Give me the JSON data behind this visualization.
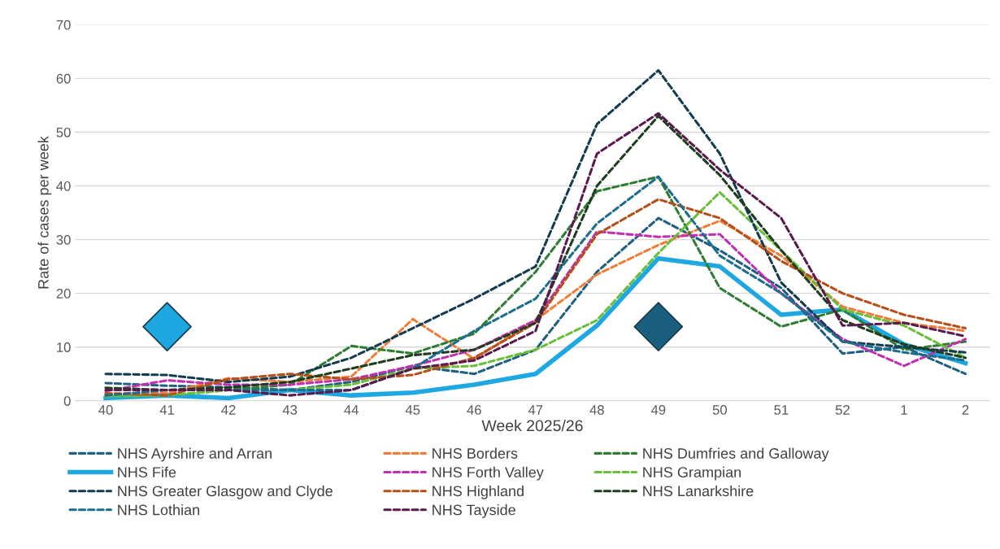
{
  "chart_data": {
    "type": "line",
    "xlabel": "Week 2025/26",
    "ylabel": "Rate of cases per week",
    "categories": [
      "40",
      "41",
      "42",
      "43",
      "44",
      "45",
      "46",
      "47",
      "48",
      "49",
      "50",
      "51",
      "52",
      "1",
      "2"
    ],
    "ylim": [
      0,
      70
    ],
    "yticks": [
      0,
      10,
      20,
      30,
      40,
      50,
      60,
      70
    ],
    "grid": "y",
    "legend": "bottom",
    "line_style": "dashed",
    "marker": "none",
    "series": [
      {
        "name": "NHS Ayrshire and Arran",
        "color": "#1f5f80",
        "values": [
          3.3,
          2.8,
          2.5,
          2,
          3.5,
          6.5,
          5,
          9.5,
          24,
          34,
          28,
          21,
          8.8,
          10,
          5
        ]
      },
      {
        "name": "NHS Borders",
        "color": "#f07d3a",
        "values": [
          1.3,
          1.5,
          4.2,
          3.5,
          4.5,
          15.2,
          7.8,
          15,
          23.5,
          29,
          33.5,
          27,
          17.5,
          14.5,
          13
        ]
      },
      {
        "name": "NHS Dumfries and Galloway",
        "color": "#2e7d32",
        "values": [
          1.1,
          1,
          2,
          3,
          10.2,
          8.8,
          12.5,
          24,
          39,
          41.7,
          21,
          13.8,
          17,
          9.5,
          11
        ]
      },
      {
        "name": "NHS Fife",
        "color": "#1ea7e1",
        "line_style": "solid",
        "values": [
          0.5,
          1,
          0.5,
          2,
          1,
          1.5,
          3,
          5,
          14,
          26.5,
          25,
          16,
          17,
          10.5,
          7
        ]
      },
      {
        "name": "NHS Forth Valley",
        "color": "#c030b0",
        "values": [
          1.8,
          3.8,
          3,
          3,
          4,
          6.5,
          9.5,
          15,
          31.5,
          30.5,
          31,
          20,
          11.5,
          6.5,
          11.5
        ]
      },
      {
        "name": "NHS Grampian",
        "color": "#6abf3a",
        "values": [
          0.8,
          1,
          2,
          2,
          3,
          6,
          6.5,
          9.5,
          15,
          27.5,
          38.8,
          28,
          17,
          14,
          8
        ]
      },
      {
        "name": "NHS Greater Glasgow and Clyde",
        "color": "#143c50",
        "values": [
          5,
          4.8,
          3.5,
          4.5,
          8,
          13.5,
          19,
          25,
          51.5,
          61.5,
          46,
          22,
          11,
          10,
          9
        ]
      },
      {
        "name": "NHS Highland",
        "color": "#b5501a",
        "values": [
          1.4,
          1,
          4,
          5,
          4,
          4.8,
          8,
          14.5,
          31,
          37.5,
          34,
          26,
          20,
          16,
          13.5
        ]
      },
      {
        "name": "NHS Lanarkshire",
        "color": "#1e3d1e",
        "values": [
          2.4,
          2,
          2.5,
          3.5,
          6,
          8.5,
          9.5,
          14.5,
          40,
          53,
          42,
          28,
          15,
          10.5,
          8
        ]
      },
      {
        "name": "NHS Lothian",
        "color": "#1b6e8c",
        "values": [
          1,
          2,
          2,
          2,
          2,
          6,
          13,
          19,
          33,
          41.7,
          27,
          20,
          11,
          9,
          7.5
        ]
      },
      {
        "name": "NHS Tayside",
        "color": "#5a1a4e",
        "values": [
          2,
          2,
          2,
          1,
          2,
          6,
          7.5,
          13,
          46,
          53.5,
          43,
          34,
          14,
          14.5,
          12
        ]
      },
      {
        "type": "scatter",
        "marker": "diamond",
        "colors": [
          null,
          "#1ea7e1",
          null,
          null,
          null,
          null,
          null,
          null,
          null,
          "#1b5f80",
          null,
          null,
          null,
          null,
          null
        ],
        "values": [
          null,
          13.8,
          null,
          null,
          null,
          null,
          null,
          null,
          null,
          13.8,
          null,
          null,
          null,
          null,
          null
        ]
      }
    ]
  }
}
